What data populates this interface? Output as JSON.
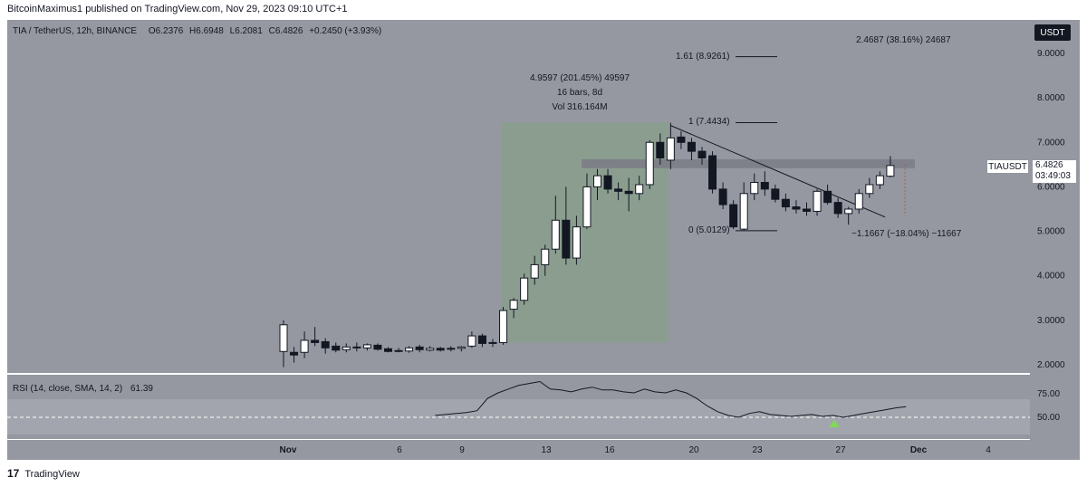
{
  "header": {
    "published": "BitcoinMaximus1 published on TradingView.com, Nov 29, 2023 09:10 UTC+1"
  },
  "legend": {
    "symbol": "TIA / TetherUS, 12h, BINANCE",
    "o_label": "O",
    "o_value": "6.2376",
    "h_label": "H",
    "h_value": "6.6948",
    "l_label": "L",
    "l_value": "6.2081",
    "c_label": "C",
    "c_value": "6.4826",
    "change": "+0.2450 (+3.93%)"
  },
  "currency_button": "USDT",
  "last_price_label": {
    "symbol": "TIAUSDT",
    "price": "6.4826",
    "countdown": "03:49:03"
  },
  "annotations": {
    "range_line1": "4.9597 (201.45%) 49597",
    "range_line2": "16 bars, 8d",
    "range_line3": "Vol 316.164M",
    "fib_161": "1.61 (8.9261)",
    "fib_1": "1 (7.4434)",
    "fib_0": "0 (5.0129)",
    "measure_up": "2.4687 (38.16%) 24687",
    "measure_down": "−1.1667 (−18.04%) −11667"
  },
  "rsi": {
    "label": "RSI (14, close, SMA, 14, 2)",
    "value": "61.39",
    "levels": [
      "75.00",
      "50.00"
    ]
  },
  "footer_brand": "TradingView",
  "colors": {
    "panel_bg": "#9598a1",
    "up_candle": "#ffffff",
    "down_candle": "#131722",
    "highlight_box": "#8a9d8c",
    "resistance_band": "#7b7e86",
    "rsi_band": "#a9abb3",
    "marker": "#7ed957"
  },
  "chart_data": {
    "type": "candlestick",
    "symbol": "TIA / TetherUS",
    "interval": "12h",
    "y_ticks": [
      2.0,
      3.0,
      4.0,
      5.0,
      6.0,
      7.0,
      8.0,
      9.0
    ],
    "y_tick_labels": [
      "2.0000",
      "3.0000",
      "4.0000",
      "5.0000",
      "6.0000",
      "7.0000",
      "8.0000",
      "9.0000"
    ],
    "x_labels": [
      "Nov",
      "6",
      "9",
      "13",
      "16",
      "20",
      "23",
      "27",
      "Dec",
      "4"
    ],
    "ylim": [
      1.65,
      9.7
    ],
    "candles": [
      {
        "o": 2.3,
        "h": 3.0,
        "l": 1.95,
        "c": 2.9
      },
      {
        "o": 2.28,
        "h": 2.4,
        "l": 2.05,
        "c": 2.22
      },
      {
        "o": 2.28,
        "h": 2.75,
        "l": 2.15,
        "c": 2.55
      },
      {
        "o": 2.55,
        "h": 2.85,
        "l": 2.42,
        "c": 2.5
      },
      {
        "o": 2.52,
        "h": 2.6,
        "l": 2.25,
        "c": 2.38
      },
      {
        "o": 2.42,
        "h": 2.5,
        "l": 2.28,
        "c": 2.33
      },
      {
        "o": 2.34,
        "h": 2.48,
        "l": 2.28,
        "c": 2.4
      },
      {
        "o": 2.4,
        "h": 2.5,
        "l": 2.3,
        "c": 2.38
      },
      {
        "o": 2.38,
        "h": 2.48,
        "l": 2.32,
        "c": 2.45
      },
      {
        "o": 2.44,
        "h": 2.48,
        "l": 2.32,
        "c": 2.35
      },
      {
        "o": 2.36,
        "h": 2.4,
        "l": 2.28,
        "c": 2.3
      },
      {
        "o": 2.32,
        "h": 2.38,
        "l": 2.28,
        "c": 2.3
      },
      {
        "o": 2.31,
        "h": 2.42,
        "l": 2.27,
        "c": 2.38
      },
      {
        "o": 2.4,
        "h": 2.45,
        "l": 2.28,
        "c": 2.34
      },
      {
        "o": 2.33,
        "h": 2.42,
        "l": 2.3,
        "c": 2.37
      },
      {
        "o": 2.37,
        "h": 2.4,
        "l": 2.3,
        "c": 2.33
      },
      {
        "o": 2.35,
        "h": 2.42,
        "l": 2.3,
        "c": 2.37
      },
      {
        "o": 2.37,
        "h": 2.42,
        "l": 2.3,
        "c": 2.4
      },
      {
        "o": 2.42,
        "h": 2.75,
        "l": 2.38,
        "c": 2.65
      },
      {
        "o": 2.65,
        "h": 2.7,
        "l": 2.4,
        "c": 2.48
      },
      {
        "o": 2.48,
        "h": 2.58,
        "l": 2.4,
        "c": 2.5
      },
      {
        "o": 2.5,
        "h": 3.3,
        "l": 2.45,
        "c": 3.22
      },
      {
        "o": 3.25,
        "h": 3.5,
        "l": 3.05,
        "c": 3.45
      },
      {
        "o": 3.45,
        "h": 4.05,
        "l": 3.35,
        "c": 3.95
      },
      {
        "o": 3.95,
        "h": 4.45,
        "l": 3.8,
        "c": 4.25
      },
      {
        "o": 4.25,
        "h": 4.7,
        "l": 4.0,
        "c": 4.6
      },
      {
        "o": 4.6,
        "h": 5.8,
        "l": 4.5,
        "c": 5.25
      },
      {
        "o": 5.25,
        "h": 6.0,
        "l": 4.25,
        "c": 4.4
      },
      {
        "o": 4.4,
        "h": 5.35,
        "l": 4.25,
        "c": 5.1
      },
      {
        "o": 5.1,
        "h": 6.3,
        "l": 5.05,
        "c": 6.0
      },
      {
        "o": 6.0,
        "h": 6.4,
        "l": 5.7,
        "c": 6.25
      },
      {
        "o": 6.25,
        "h": 6.4,
        "l": 5.85,
        "c": 5.95
      },
      {
        "o": 5.95,
        "h": 6.1,
        "l": 5.7,
        "c": 5.9
      },
      {
        "o": 5.9,
        "h": 6.2,
        "l": 5.45,
        "c": 5.85
      },
      {
        "o": 5.85,
        "h": 6.25,
        "l": 5.7,
        "c": 6.05
      },
      {
        "o": 6.05,
        "h": 7.05,
        "l": 5.95,
        "c": 7.0
      },
      {
        "o": 7.0,
        "h": 7.2,
        "l": 6.5,
        "c": 6.65
      },
      {
        "o": 6.6,
        "h": 7.44,
        "l": 6.4,
        "c": 7.1
      },
      {
        "o": 7.12,
        "h": 7.25,
        "l": 6.85,
        "c": 7.0
      },
      {
        "o": 7.0,
        "h": 7.1,
        "l": 6.6,
        "c": 6.8
      },
      {
        "o": 6.8,
        "h": 6.9,
        "l": 6.5,
        "c": 6.65
      },
      {
        "o": 6.7,
        "h": 6.8,
        "l": 5.85,
        "c": 5.95
      },
      {
        "o": 5.95,
        "h": 6.1,
        "l": 5.5,
        "c": 5.6
      },
      {
        "o": 5.6,
        "h": 5.7,
        "l": 5.05,
        "c": 5.1
      },
      {
        "o": 5.05,
        "h": 6.1,
        "l": 5.01,
        "c": 5.85
      },
      {
        "o": 5.85,
        "h": 6.3,
        "l": 5.7,
        "c": 6.1
      },
      {
        "o": 6.1,
        "h": 6.35,
        "l": 5.8,
        "c": 5.95
      },
      {
        "o": 5.95,
        "h": 6.05,
        "l": 5.65,
        "c": 5.72
      },
      {
        "o": 5.72,
        "h": 5.85,
        "l": 5.45,
        "c": 5.55
      },
      {
        "o": 5.55,
        "h": 5.7,
        "l": 5.4,
        "c": 5.5
      },
      {
        "o": 5.5,
        "h": 5.65,
        "l": 5.35,
        "c": 5.45
      },
      {
        "o": 5.45,
        "h": 5.95,
        "l": 5.35,
        "c": 5.9
      },
      {
        "o": 5.9,
        "h": 6.05,
        "l": 5.6,
        "c": 5.65
      },
      {
        "o": 5.65,
        "h": 5.75,
        "l": 5.3,
        "c": 5.4
      },
      {
        "o": 5.4,
        "h": 5.55,
        "l": 5.15,
        "c": 5.5
      },
      {
        "o": 5.5,
        "h": 5.95,
        "l": 5.4,
        "c": 5.85
      },
      {
        "o": 5.85,
        "h": 6.2,
        "l": 5.75,
        "c": 6.05
      },
      {
        "o": 6.05,
        "h": 6.35,
        "l": 5.95,
        "c": 6.25
      },
      {
        "o": 6.24,
        "h": 6.69,
        "l": 6.21,
        "c": 6.48
      }
    ],
    "rsi_series": [
      52,
      53,
      54,
      55,
      57,
      70,
      76,
      80,
      84,
      86,
      88,
      80,
      79,
      77,
      80,
      82,
      79,
      79,
      77,
      76,
      80,
      77,
      76,
      79,
      76,
      70,
      62,
      56,
      52,
      50,
      54,
      56,
      53,
      52,
      51,
      52,
      53,
      51,
      52,
      50,
      52,
      54,
      56,
      58,
      60,
      61.39
    ],
    "resistance_band": [
      6.42,
      6.62
    ],
    "fib_levels": [
      {
        "label": "1.61",
        "value": 8.9261
      },
      {
        "label": "1",
        "value": 7.4434
      },
      {
        "label": "0",
        "value": 5.0129
      }
    ],
    "trendline": {
      "from": {
        "bar": 37,
        "price": 7.38
      },
      "to": {
        "bar": 57.5,
        "price": 5.32
      }
    }
  }
}
